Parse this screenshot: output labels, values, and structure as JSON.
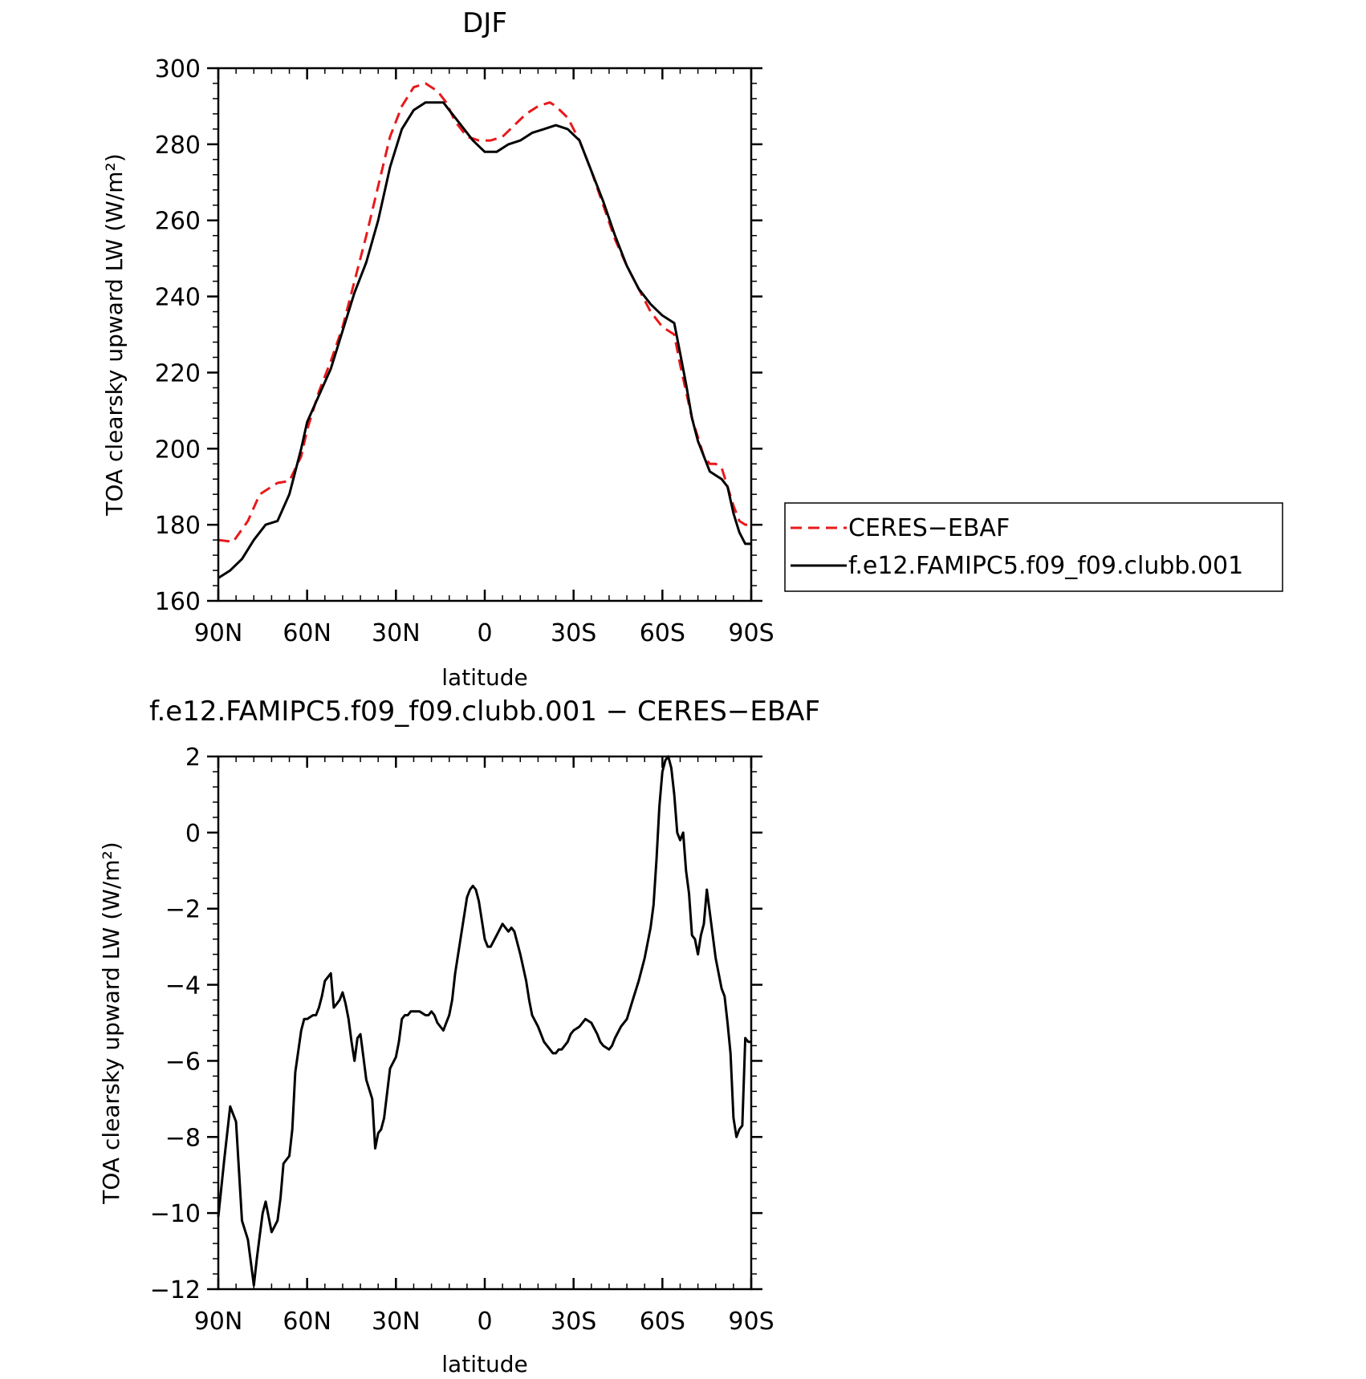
{
  "chart_data": [
    {
      "type": "line",
      "title": "DJF",
      "xlabel": "latitude",
      "ylabel": "TOA clearsky upward LW (W/m²)",
      "xlim": [
        -90,
        90
      ],
      "ylim": [
        160,
        300
      ],
      "x_ticks": [
        {
          "value": -90,
          "label": "90N"
        },
        {
          "value": -60,
          "label": "60N"
        },
        {
          "value": -30,
          "label": "30N"
        },
        {
          "value": 0,
          "label": "0"
        },
        {
          "value": 30,
          "label": "30S"
        },
        {
          "value": 60,
          "label": "60S"
        },
        {
          "value": 90,
          "label": "90S"
        }
      ],
      "y_ticks": [
        {
          "value": 160,
          "label": "160"
        },
        {
          "value": 180,
          "label": "180"
        },
        {
          "value": 200,
          "label": "200"
        },
        {
          "value": 220,
          "label": "220"
        },
        {
          "value": 240,
          "label": "240"
        },
        {
          "value": 260,
          "label": "260"
        },
        {
          "value": 280,
          "label": "280"
        },
        {
          "value": 300,
          "label": "300"
        }
      ],
      "legend": {
        "placement": "right"
      },
      "series": [
        {
          "name": "CERES−EBAF",
          "color": "#e8191b",
          "style": "dashed",
          "x": [
            -90,
            -85,
            -80,
            -76,
            -72,
            -70,
            -66,
            -62,
            -60,
            -56,
            -52,
            -48,
            -44,
            -40,
            -36,
            -32,
            -28,
            -24,
            -20,
            -16,
            -13,
            -10,
            -6,
            -2,
            2,
            6,
            10,
            14,
            18,
            22,
            24,
            28,
            32,
            36,
            40,
            44,
            48,
            52,
            56,
            60,
            64,
            66,
            68,
            70,
            72,
            74,
            76,
            78,
            80,
            82,
            84,
            86,
            88,
            90
          ],
          "values": [
            176,
            175.5,
            181,
            188,
            190,
            191,
            191.5,
            198,
            205,
            215,
            223,
            232,
            244,
            256,
            269,
            282,
            290,
            295,
            296,
            294,
            291,
            286,
            282,
            281,
            281,
            282,
            285,
            288,
            290,
            291,
            290,
            287,
            281,
            273,
            264,
            255,
            248,
            242,
            236,
            232,
            230,
            222,
            215,
            208,
            203,
            198,
            196,
            196,
            195,
            190,
            185,
            181,
            180,
            180
          ]
        },
        {
          "name": "f.e12.FAMIPC5.f09_f09.clubb.001",
          "color": "#000000",
          "style": "solid",
          "x": [
            -90,
            -86,
            -82,
            -78,
            -74,
            -70,
            -66,
            -62,
            -60,
            -56,
            -52,
            -48,
            -44,
            -40,
            -36,
            -32,
            -28,
            -24,
            -20,
            -17,
            -14,
            -12,
            -8,
            -4,
            0,
            4,
            8,
            12,
            16,
            20,
            24,
            28,
            32,
            36,
            40,
            44,
            48,
            52,
            56,
            60,
            64,
            66,
            68,
            70,
            72,
            74,
            76,
            78,
            80,
            82,
            84,
            86,
            88,
            90
          ],
          "values": [
            166,
            168,
            171,
            176,
            180,
            181,
            188,
            200,
            207,
            214,
            221,
            231,
            241,
            249,
            260,
            274,
            284,
            289,
            291,
            291,
            291,
            289,
            285,
            281,
            278,
            278,
            280,
            281,
            283,
            284,
            285,
            284,
            281,
            273,
            265,
            256,
            248,
            242,
            238,
            235,
            233,
            225,
            217,
            208,
            202,
            198,
            194,
            193,
            192,
            190,
            183,
            178,
            175,
            175
          ]
        }
      ]
    },
    {
      "type": "line",
      "title": "f.e12.FAMIPC5.f09_f09.clubb.001 − CERES−EBAF",
      "xlabel": "latitude",
      "ylabel": "TOA clearsky upward LW (W/m²)",
      "xlim": [
        -90,
        90
      ],
      "ylim": [
        -12,
        2
      ],
      "x_ticks": [
        {
          "value": -90,
          "label": "90N"
        },
        {
          "value": -60,
          "label": "60N"
        },
        {
          "value": -30,
          "label": "30N"
        },
        {
          "value": 0,
          "label": "0"
        },
        {
          "value": 30,
          "label": "30S"
        },
        {
          "value": 60,
          "label": "60S"
        },
        {
          "value": 90,
          "label": "90S"
        }
      ],
      "y_ticks": [
        {
          "value": -12,
          "label": "−12"
        },
        {
          "value": -10,
          "label": "−10"
        },
        {
          "value": -8,
          "label": "−8"
        },
        {
          "value": -6,
          "label": "−6"
        },
        {
          "value": -4,
          "label": "−4"
        },
        {
          "value": -2,
          "label": "−2"
        },
        {
          "value": 0,
          "label": "0"
        },
        {
          "value": 2,
          "label": "2"
        }
      ],
      "series": [
        {
          "name": "",
          "color": "#000000",
          "style": "solid",
          "x": [
            -90,
            -88,
            -86,
            -84,
            -83,
            -82,
            -80,
            -78,
            -77,
            -76,
            -75,
            -74,
            -72,
            -70,
            -69,
            -68,
            -67,
            -66,
            -65,
            -64,
            -62,
            -61,
            -60,
            -58,
            -57,
            -56,
            -55,
            -54,
            -52,
            -51,
            -50,
            -49,
            -48,
            -47,
            -46,
            -45,
            -44,
            -43,
            -42,
            -41,
            -40,
            -38,
            -37,
            -36,
            -35,
            -34,
            -32,
            -30,
            -29,
            -28,
            -27,
            -26,
            -25,
            -24,
            -22,
            -20,
            -19,
            -18,
            -17,
            -16,
            -14,
            -13,
            -12,
            -11,
            -10,
            -9,
            -8,
            -7,
            -6,
            -5,
            -4,
            -3,
            -2,
            -1,
            0,
            1,
            2,
            4,
            6,
            7,
            8,
            9,
            10,
            12,
            14,
            15,
            16,
            18,
            20,
            22,
            23,
            24,
            25,
            26,
            28,
            29,
            30,
            32,
            33,
            34,
            36,
            38,
            39,
            40,
            42,
            43,
            44,
            46,
            48,
            50,
            52,
            54,
            56,
            57,
            58,
            59,
            60,
            61,
            62,
            63,
            64,
            65,
            66,
            67,
            68,
            69,
            70,
            71,
            72,
            73,
            74,
            75,
            76,
            78,
            80,
            81,
            82,
            83,
            84,
            85,
            86,
            87,
            88,
            89,
            90
          ],
          "values": [
            -10.1,
            -8.6,
            -7.2,
            -7.6,
            -8.9,
            -10.2,
            -10.7,
            -11.9,
            -11.2,
            -10.6,
            -10.0,
            -9.7,
            -10.5,
            -10.2,
            -9.6,
            -8.7,
            -8.6,
            -8.5,
            -7.8,
            -6.3,
            -5.2,
            -4.9,
            -4.9,
            -4.8,
            -4.8,
            -4.6,
            -4.3,
            -3.9,
            -3.7,
            -4.6,
            -4.5,
            -4.4,
            -4.2,
            -4.5,
            -4.9,
            -5.5,
            -6.0,
            -5.4,
            -5.3,
            -5.9,
            -6.5,
            -7.0,
            -8.3,
            -7.9,
            -7.8,
            -7.5,
            -6.2,
            -5.9,
            -5.5,
            -4.9,
            -4.8,
            -4.8,
            -4.7,
            -4.7,
            -4.7,
            -4.8,
            -4.8,
            -4.7,
            -4.8,
            -5.0,
            -5.2,
            -5.0,
            -4.8,
            -4.4,
            -3.7,
            -3.2,
            -2.7,
            -2.2,
            -1.7,
            -1.5,
            -1.4,
            -1.5,
            -1.8,
            -2.3,
            -2.8,
            -3.0,
            -3.0,
            -2.7,
            -2.4,
            -2.5,
            -2.6,
            -2.5,
            -2.6,
            -3.2,
            -3.9,
            -4.4,
            -4.8,
            -5.1,
            -5.5,
            -5.7,
            -5.8,
            -5.8,
            -5.7,
            -5.7,
            -5.5,
            -5.3,
            -5.2,
            -5.1,
            -5.0,
            -4.9,
            -5.0,
            -5.3,
            -5.5,
            -5.6,
            -5.7,
            -5.6,
            -5.4,
            -5.1,
            -4.9,
            -4.4,
            -3.9,
            -3.3,
            -2.5,
            -1.9,
            -0.7,
            0.7,
            1.6,
            1.9,
            2.0,
            1.7,
            1.0,
            0.0,
            -0.2,
            0.0,
            -1.0,
            -1.6,
            -2.7,
            -2.8,
            -3.2,
            -2.7,
            -2.4,
            -1.5,
            -2.1,
            -3.3,
            -4.1,
            -4.3,
            -5.0,
            -5.8,
            -7.5,
            -8.0,
            -7.8,
            -7.7,
            -5.4,
            -5.5,
            -5.5
          ]
        }
      ]
    }
  ]
}
